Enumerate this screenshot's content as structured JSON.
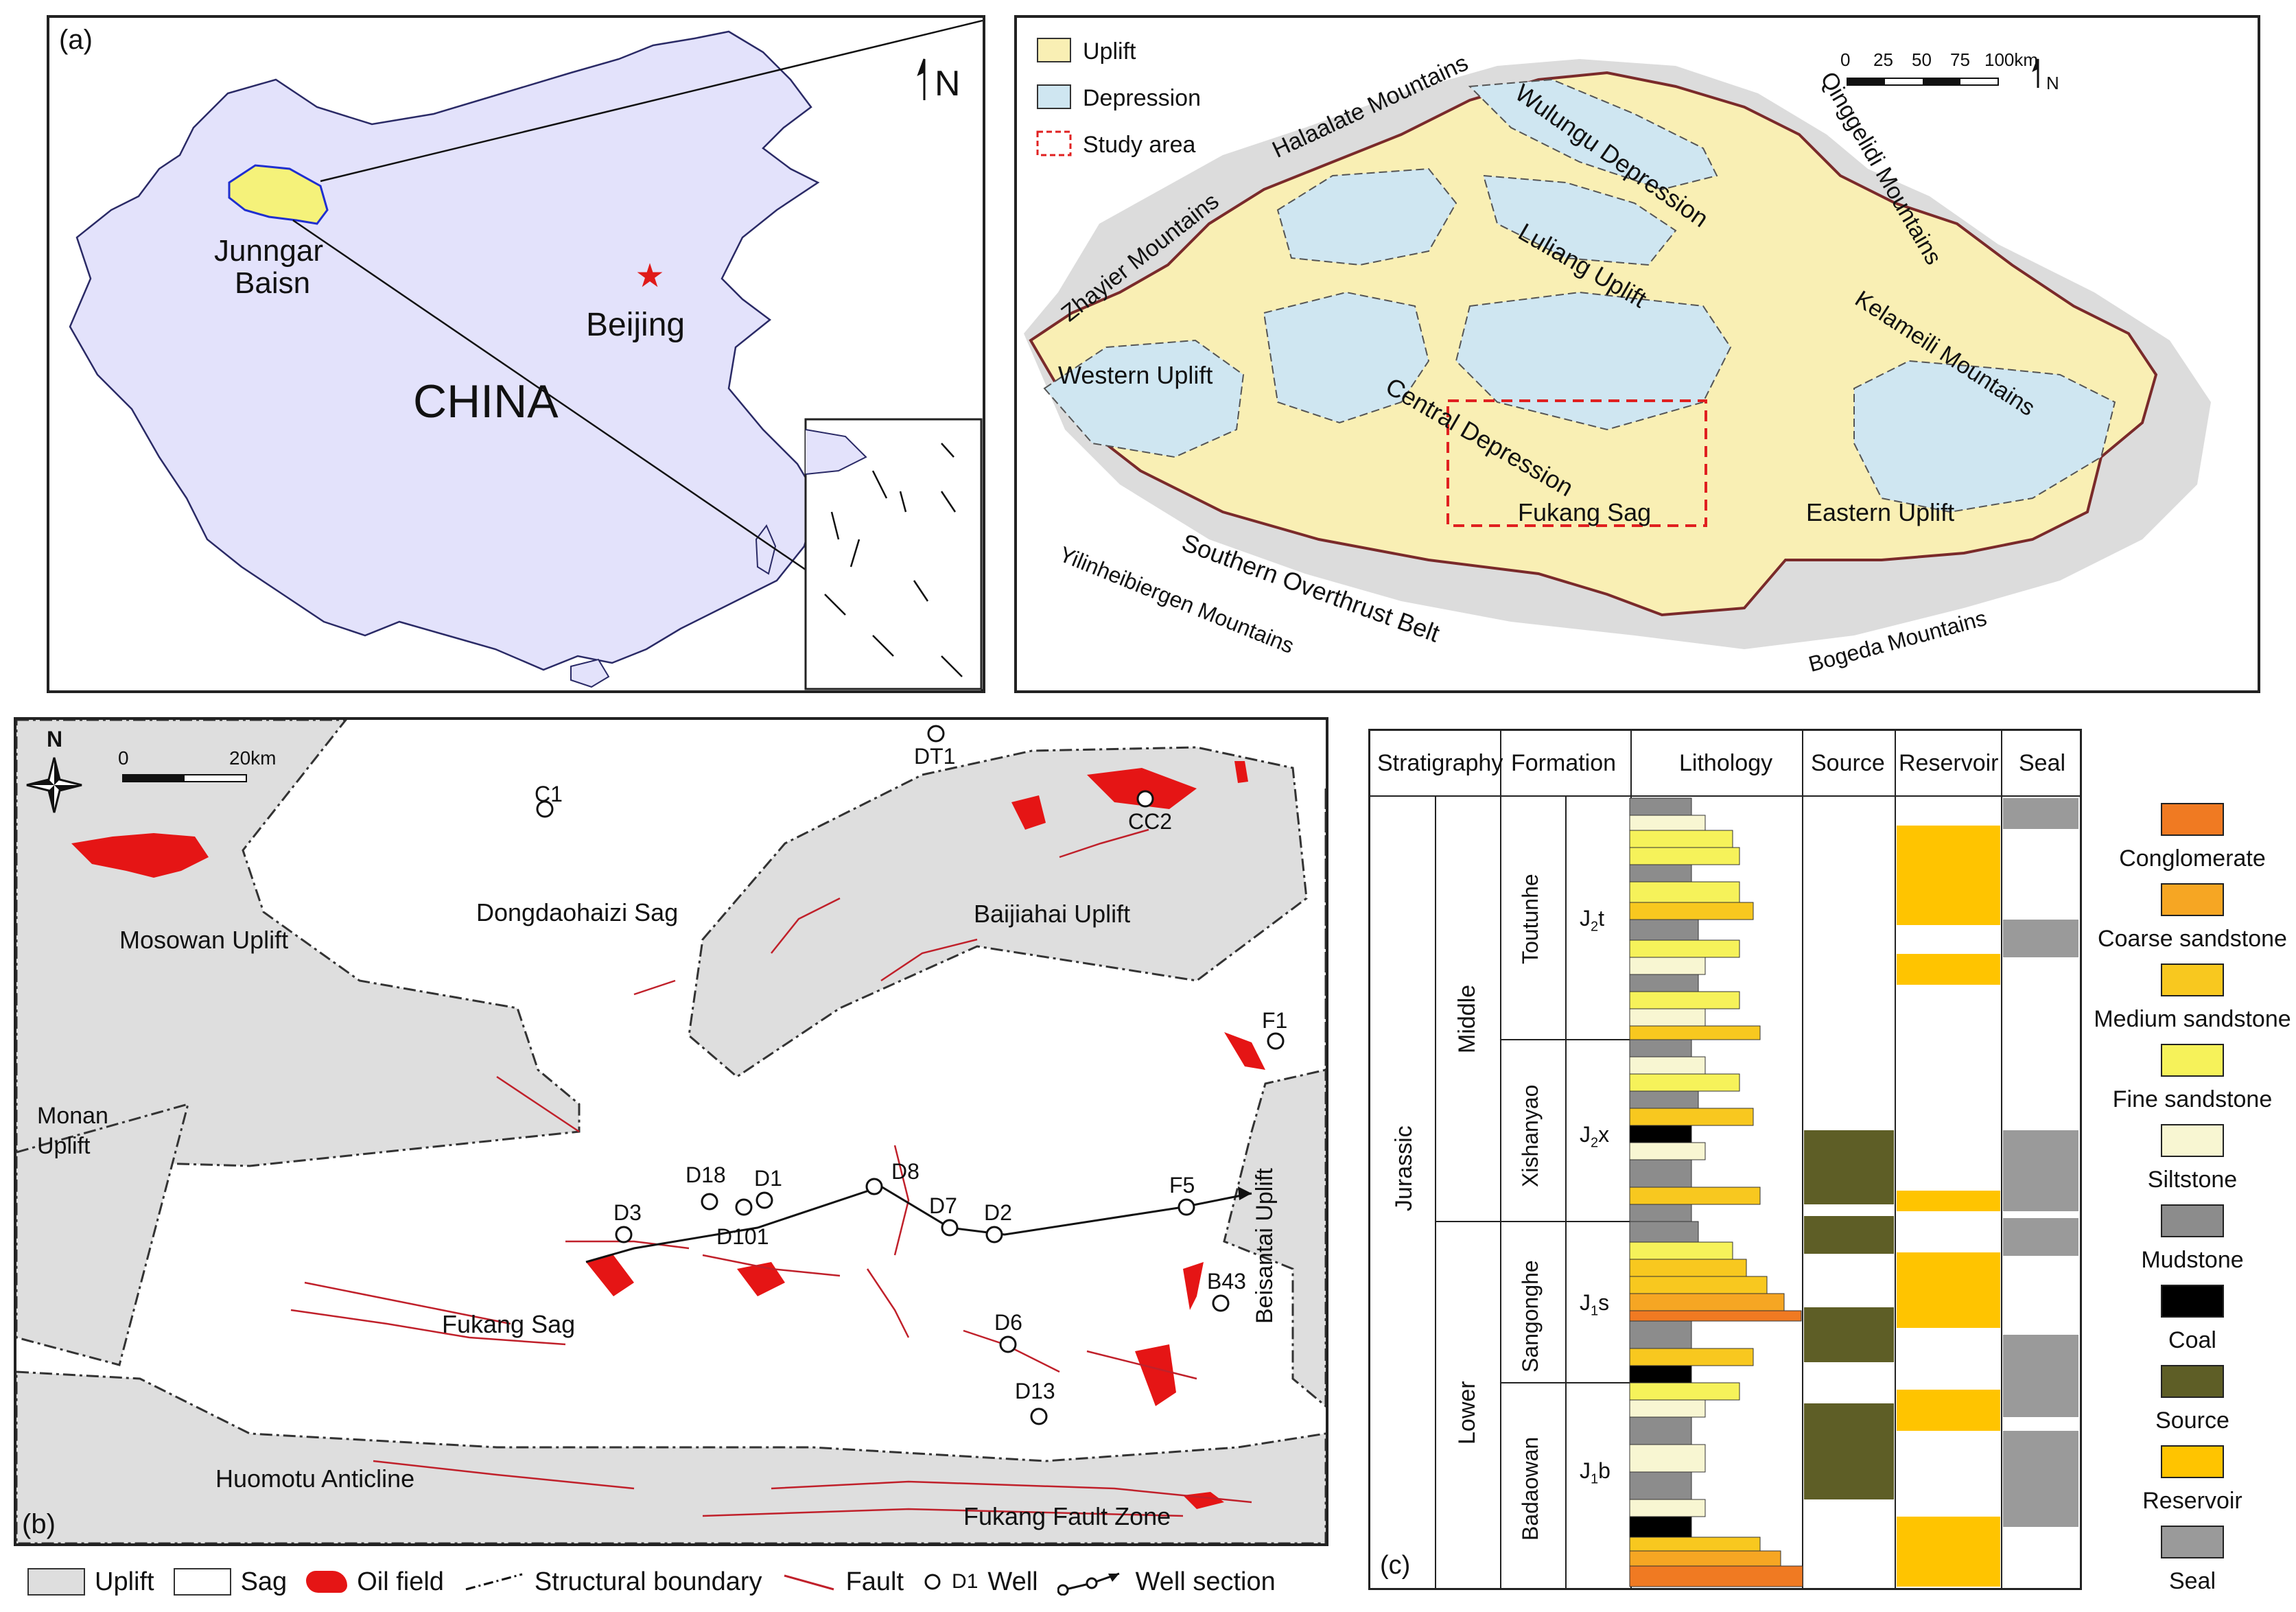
{
  "panel_a": {
    "label": "(a)",
    "north": "N",
    "basin_label_line1": "Junngar",
    "basin_label_line2": "Baisn",
    "capital": "Beijing",
    "country": "CHINA"
  },
  "panel_a2": {
    "legend": [
      {
        "label": "Uplift",
        "color": "#f9efb4"
      },
      {
        "label": "Depression",
        "color": "#cfe6f1"
      },
      {
        "label": "Study area",
        "color": "#e02020"
      }
    ],
    "scale_ticks": [
      "0",
      "25",
      "50",
      "75",
      "100km"
    ],
    "north": "N",
    "units": [
      "Halaalate Mountains",
      "Qinggelidi Mountains",
      "Wulungu Depression",
      "Luliang Uplift",
      "Zhayier Mountains",
      "Kelameili Mountains",
      "Western Uplift",
      "Central Depression",
      "Fukang Sag",
      "Southern Overthrust Belt",
      "Eastern Uplift",
      "Yilinheibiergen Mountains",
      "Bogeda Mountains"
    ]
  },
  "panel_b": {
    "label": "(b)",
    "north": "N",
    "scale_ticks": [
      "0",
      "20km"
    ],
    "areas": [
      "Mosowan Uplift",
      "Dongdaohaizi Sag",
      "Baijiahai Uplift",
      "Monan Uplift",
      "Fukang Sag",
      "Beisantai Uplift",
      "Huomotu Anticline",
      "Fukang Fault Zone"
    ],
    "wells": [
      "DT1",
      "C1",
      "CC2",
      "F1",
      "D18",
      "D1",
      "D8",
      "D3",
      "D101",
      "D7",
      "D2",
      "F5",
      "B43",
      "D6",
      "D13"
    ],
    "legend": [
      {
        "label": "Uplift"
      },
      {
        "label": "Sag"
      },
      {
        "label": "Oil field"
      },
      {
        "label": "Structural boundary"
      },
      {
        "label": "Fault"
      },
      {
        "label": "Well",
        "sample": "D1"
      },
      {
        "label": "Well section"
      }
    ]
  },
  "panel_c": {
    "label": "(c)",
    "headers": [
      "Stratigraphy",
      "Formation",
      "Lithology",
      "Source",
      "Reservoir",
      "Seal"
    ],
    "system": "Jurassic",
    "series": [
      "Middle",
      "Lower"
    ],
    "formations": [
      "Toutunhe",
      "Xishanyao",
      "Sangonghe",
      "Badaowan"
    ],
    "formation_codes": [
      {
        "main": "J",
        "sub": "2",
        "tail": "t"
      },
      {
        "main": "J",
        "sub": "2",
        "tail": "x"
      },
      {
        "main": "J",
        "sub": "1",
        "tail": "s"
      },
      {
        "main": "J",
        "sub": "1",
        "tail": "b"
      }
    ],
    "legend": [
      {
        "label": "Conglomerate",
        "color": "#f07a22"
      },
      {
        "label": "Coarse sandstone",
        "color": "#f6a623"
      },
      {
        "label": "Medium sandstone",
        "color": "#f8c81f"
      },
      {
        "label": "Fine sandstone",
        "color": "#f6f25a"
      },
      {
        "label": "Siltstone",
        "color": "#f8f6d2"
      },
      {
        "label": "Mudstone",
        "color": "#8c8c8c"
      },
      {
        "label": "Coal",
        "color": "#000000"
      },
      {
        "label": "Source",
        "color": "#5e5e26"
      },
      {
        "label": "Reservoir",
        "color": "#ffc400"
      },
      {
        "label": "Seal",
        "color": "#9a9a9a"
      }
    ]
  }
}
